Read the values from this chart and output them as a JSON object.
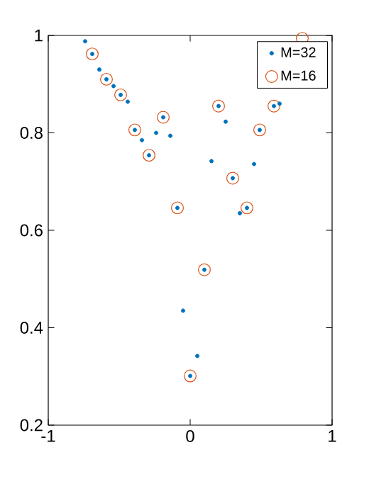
{
  "chart_data": {
    "type": "scatter",
    "xlim": [
      -1,
      1
    ],
    "ylim": [
      0.2,
      1
    ],
    "xticks": [
      -1,
      0,
      1
    ],
    "yticks": [
      0.2,
      0.4,
      0.6,
      0.8,
      1
    ],
    "grid": false,
    "legend": "top right",
    "marker": "circle",
    "series": [
      {
        "name": "M=32",
        "color": "#0072bd",
        "x": [
          -0.74,
          -0.69,
          -0.64,
          -0.59,
          -0.54,
          -0.49,
          -0.44,
          -0.39,
          -0.34,
          -0.29,
          -0.24,
          -0.19,
          -0.14,
          -0.09,
          -0.05,
          0.0,
          0.05,
          0.1,
          0.15,
          0.2,
          0.25,
          0.3,
          0.35,
          0.4,
          0.45,
          0.49,
          0.59,
          0.63
        ],
        "values": [
          0.988,
          0.962,
          0.93,
          0.91,
          0.896,
          0.878,
          0.864,
          0.806,
          0.785,
          0.754,
          0.8,
          0.832,
          0.794,
          0.646,
          0.435,
          0.301,
          0.342,
          0.519,
          0.742,
          0.855,
          0.823,
          0.707,
          0.635,
          0.646,
          0.736,
          0.806,
          0.855,
          0.86
        ]
      },
      {
        "name": "M=16",
        "color": "#d95319",
        "x": [
          -0.69,
          -0.59,
          -0.49,
          -0.39,
          -0.29,
          -0.19,
          -0.09,
          0.0,
          0.1,
          0.2,
          0.3,
          0.4,
          0.49,
          0.59,
          0.79
        ],
        "values": [
          0.962,
          0.91,
          0.878,
          0.806,
          0.754,
          0.832,
          0.646,
          0.301,
          0.519,
          0.855,
          0.707,
          0.646,
          0.806,
          0.855,
          0.994
        ]
      }
    ]
  }
}
